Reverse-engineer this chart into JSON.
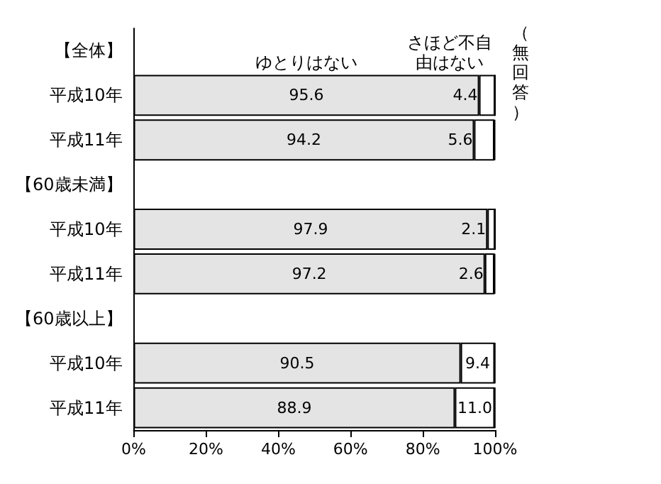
{
  "chart_data": {
    "type": "bar",
    "orientation": "horizontal",
    "stacked": true,
    "categories": [
      "【全体】",
      "平成10年",
      "平成11年",
      "【60歳未満】",
      "平成10年",
      "平成11年",
      "【60歳以上】",
      "平成10年",
      "平成11年"
    ],
    "series": [
      {
        "name": "ゆとりはない",
        "color": "#e4e4e4",
        "values": [
          null,
          95.6,
          94.2,
          null,
          97.9,
          97.2,
          null,
          90.5,
          88.9
        ],
        "value_labels": [
          null,
          "95.6",
          "94.2",
          null,
          "97.9",
          "97.2",
          null,
          "90.5",
          "88.9"
        ]
      },
      {
        "name": "さほど不自由はない",
        "color": "#ffffff",
        "values": [
          null,
          4.4,
          5.6,
          null,
          2.1,
          2.6,
          null,
          9.4,
          11.0
        ],
        "value_labels": [
          null,
          "4.4",
          "5.6",
          null,
          "2.1",
          "2.6",
          null,
          "9.4",
          "11.0"
        ]
      },
      {
        "name": "（無回答）",
        "color": "#000000",
        "values": [
          null,
          0,
          0.2,
          null,
          0,
          0.2,
          null,
          0.1,
          0.1
        ]
      }
    ],
    "xlim": [
      0,
      100
    ],
    "xticks": [
      {
        "value": 0,
        "label": "0%"
      },
      {
        "value": 20,
        "label": "20%"
      },
      {
        "value": 40,
        "label": "40%"
      },
      {
        "value": 60,
        "label": "60%"
      },
      {
        "value": 80,
        "label": "80%"
      },
      {
        "value": 100,
        "label": "100%"
      }
    ],
    "grid": false,
    "legend": false
  }
}
